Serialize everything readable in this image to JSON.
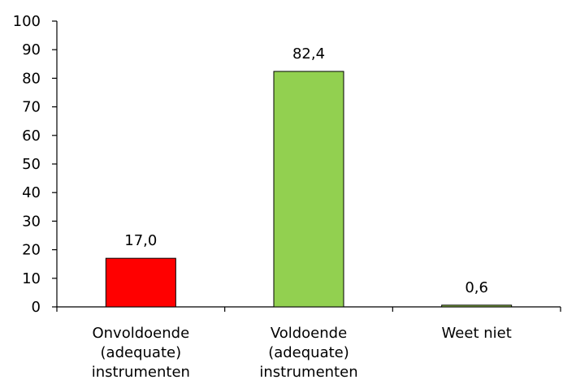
{
  "chart_data": {
    "type": "bar",
    "categories": [
      [
        "Onvoldoende",
        "(adequate)",
        "instrumenten"
      ],
      [
        "Voldoende",
        "(adequate)",
        "instrumenten"
      ],
      [
        "Weet niet"
      ]
    ],
    "values": [
      17.0,
      82.4,
      0.6
    ],
    "data_labels": [
      "17,0",
      "82,4",
      "0,6"
    ],
    "bar_colors": [
      "#ff0000",
      "#92d050",
      "#8fbf4a"
    ],
    "ylim": [
      0,
      100
    ],
    "yticks": [
      0,
      10,
      20,
      30,
      40,
      50,
      60,
      70,
      80,
      90,
      100
    ],
    "title": "",
    "xlabel": "",
    "ylabel": "",
    "grid": false,
    "legend": "none"
  }
}
